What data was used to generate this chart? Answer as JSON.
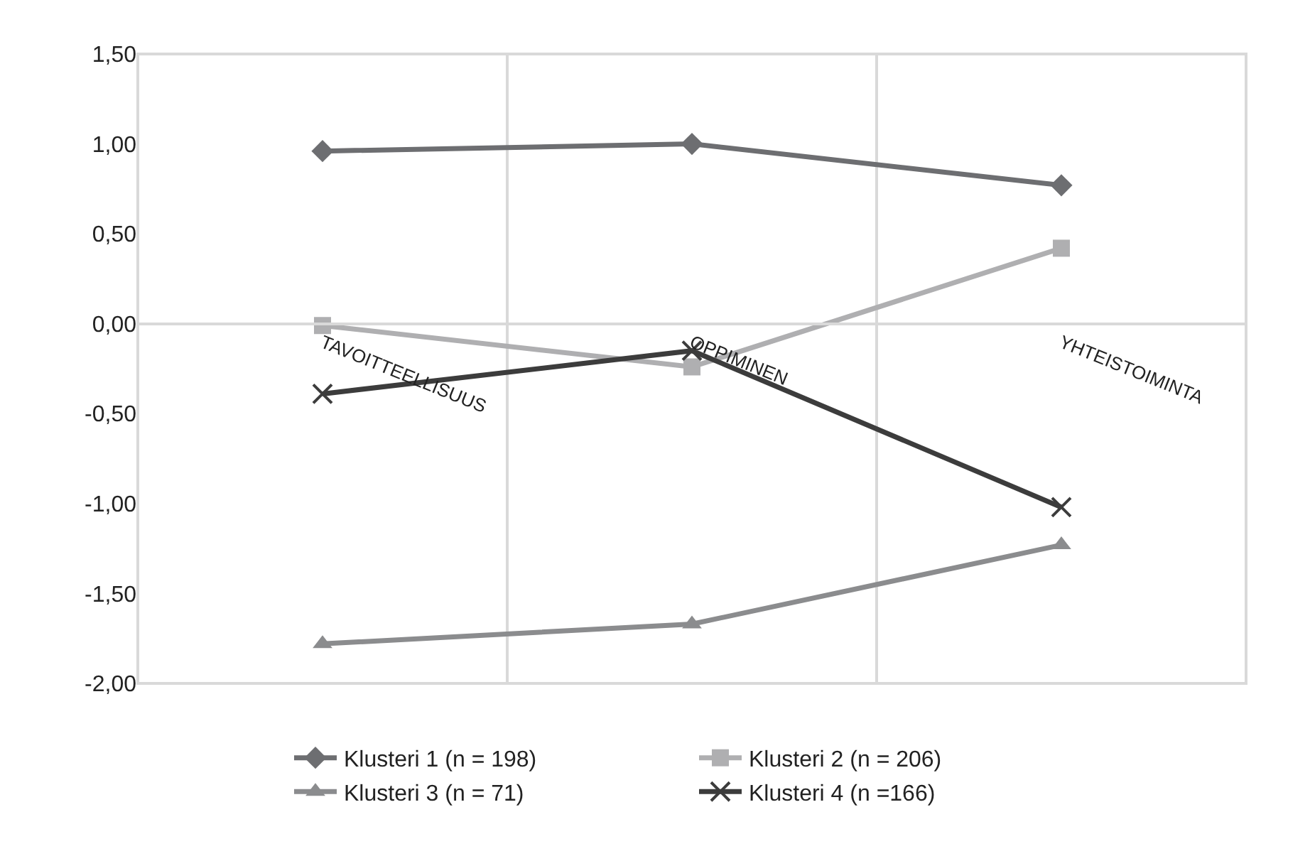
{
  "chart_data": {
    "type": "line",
    "categories": [
      "TAVOITTEELLISUUS",
      "OPPIMINEN",
      "YHTEISTOIMINTA"
    ],
    "series": [
      {
        "name": "Klusteri 1 (n = 198)",
        "color": "#6d6e71",
        "marker": "diamond",
        "values": [
          0.96,
          1.0,
          0.77
        ]
      },
      {
        "name": "Klusteri 2 (n = 206)",
        "color": "#afafb1",
        "marker": "square",
        "values": [
          -0.01,
          -0.24,
          0.42
        ]
      },
      {
        "name": "Klusteri 3 (n = 71)",
        "color": "#8b8c8e",
        "marker": "triangle",
        "values": [
          -1.78,
          -1.67,
          -1.23
        ]
      },
      {
        "name": "Klusteri 4 (n =166)",
        "color": "#3c3c3c",
        "marker": "cross",
        "values": [
          -0.39,
          -0.15,
          -1.02
        ]
      }
    ],
    "ylim": [
      -2.0,
      1.5
    ],
    "yticks": [
      {
        "value": 1.5,
        "label": "1,50"
      },
      {
        "value": 1.0,
        "label": "1,00"
      },
      {
        "value": 0.5,
        "label": "0,50"
      },
      {
        "value": 0.0,
        "label": "0,00"
      },
      {
        "value": -0.5,
        "label": "-0,50"
      },
      {
        "value": -1.0,
        "label": "-1,00"
      },
      {
        "value": -1.5,
        "label": "-1,50"
      },
      {
        "value": -2.0,
        "label": "-2,00"
      }
    ],
    "grid": "x",
    "legend": "bottom",
    "line_style": "solid"
  }
}
